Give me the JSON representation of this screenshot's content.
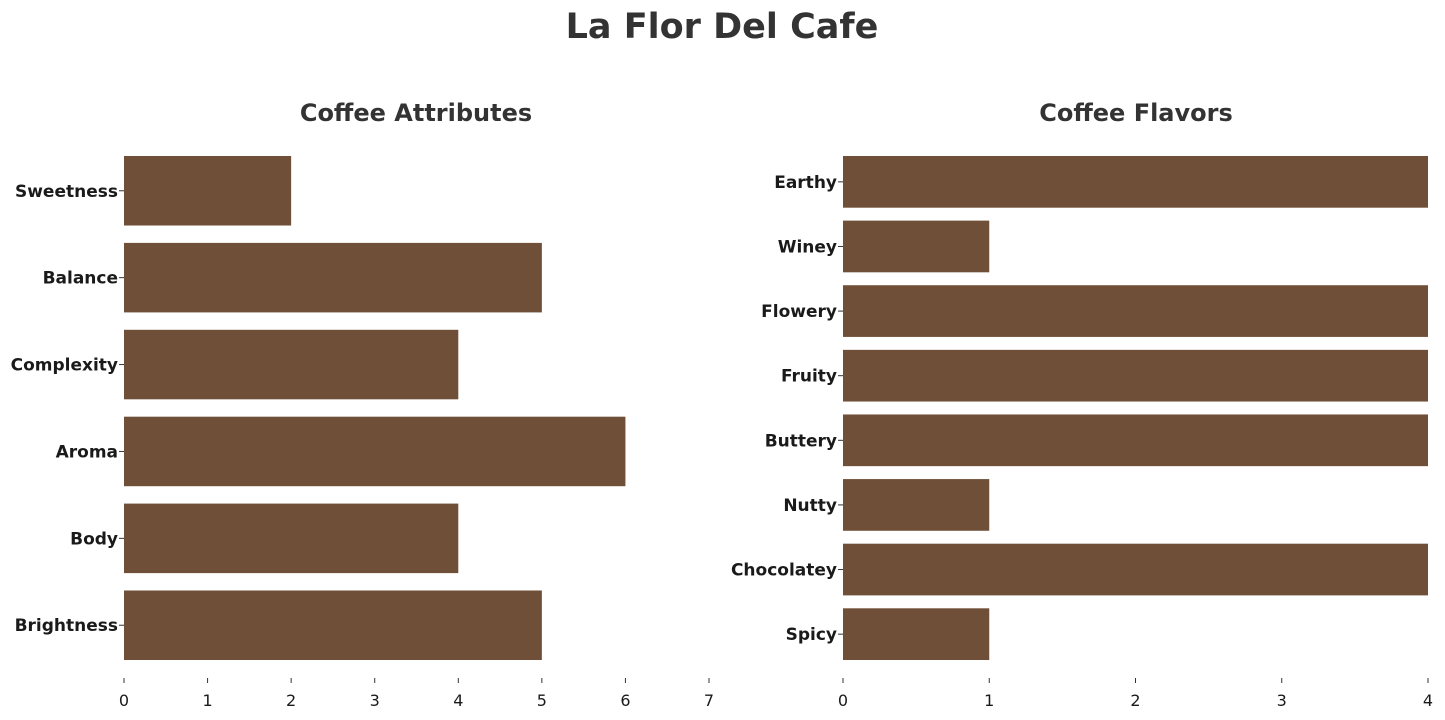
{
  "figure": {
    "title": "La Flor Del Cafe",
    "bar_color": "#6f4f37"
  },
  "chart_data": [
    {
      "type": "bar",
      "orientation": "horizontal",
      "title": "Coffee Attributes",
      "xlabel": "",
      "ylabel": "",
      "categories": [
        "Sweetness",
        "Balance",
        "Complexity",
        "Aroma",
        "Body",
        "Brightness"
      ],
      "values": [
        2,
        5,
        4,
        6,
        4,
        5
      ],
      "xlim": [
        0,
        7
      ],
      "xticks": [
        "0",
        "1",
        "2",
        "3",
        "4",
        "5",
        "6",
        "7"
      ],
      "grid": false,
      "legend": "none"
    },
    {
      "type": "bar",
      "orientation": "horizontal",
      "title": "Coffee Flavors",
      "xlabel": "",
      "ylabel": "",
      "categories": [
        "Earthy",
        "Winey",
        "Flowery",
        "Fruity",
        "Buttery",
        "Nutty",
        "Chocolatey",
        "Spicy"
      ],
      "values": [
        4,
        1,
        4,
        4,
        4,
        1,
        4,
        1
      ],
      "xlim": [
        0,
        4
      ],
      "xticks": [
        "0",
        "1",
        "2",
        "3",
        "4"
      ],
      "grid": false,
      "legend": "none"
    }
  ]
}
